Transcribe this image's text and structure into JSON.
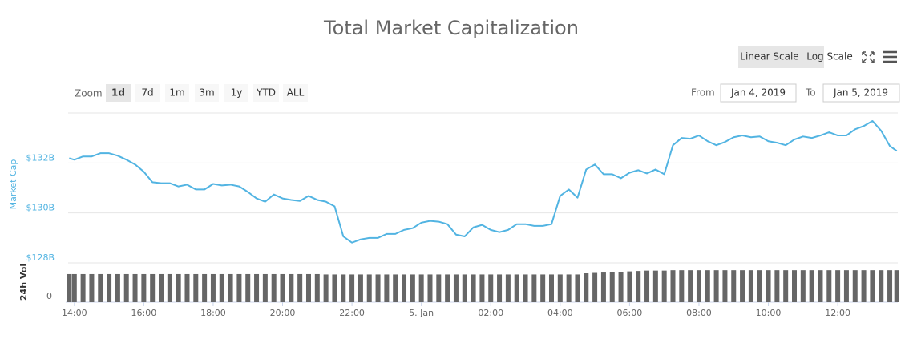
{
  "chart_data": {
    "type": "line",
    "title": "Total Market Capitalization",
    "ylabel": "Market Cap",
    "x": [
      13.85,
      14,
      14.25,
      14.5,
      14.75,
      15,
      15.25,
      15.5,
      15.75,
      16,
      16.25,
      16.5,
      16.75,
      17,
      17.25,
      17.5,
      17.75,
      18,
      18.25,
      18.5,
      18.75,
      19,
      19.25,
      19.5,
      19.75,
      20,
      20.25,
      20.5,
      20.75,
      21,
      21.25,
      21.5,
      21.75,
      22,
      22.25,
      22.5,
      22.75,
      23,
      23.25,
      23.5,
      23.75,
      24,
      24.25,
      24.5,
      24.75,
      25,
      25.25,
      25.5,
      25.75,
      26,
      26.25,
      26.5,
      26.75,
      27,
      27.25,
      27.5,
      27.75,
      28,
      28.25,
      28.5,
      28.75,
      29,
      29.25,
      29.5,
      29.75,
      30,
      30.25,
      30.5,
      30.75,
      31,
      31.25,
      31.5,
      31.75,
      32,
      32.25,
      32.5,
      32.75,
      33,
      33.25,
      33.5,
      33.75,
      34,
      34.25,
      34.5,
      34.75,
      35,
      35.25,
      35.5,
      35.75,
      36,
      36.25,
      36.5,
      36.75,
      37,
      37.25,
      37.5,
      37.7
    ],
    "series": [
      {
        "name": "Market Cap",
        "color": "#52b4e2",
        "values": [
          132.19,
          132.13,
          132.26,
          132.26,
          132.39,
          132.39,
          132.29,
          132.13,
          131.94,
          131.65,
          131.23,
          131.19,
          131.19,
          131.06,
          131.13,
          130.94,
          130.94,
          131.16,
          131.1,
          131.13,
          131.06,
          130.84,
          130.58,
          130.45,
          130.74,
          130.58,
          130.52,
          130.48,
          130.68,
          130.52,
          130.45,
          130.26,
          129.06,
          128.81,
          128.94,
          129.0,
          129.0,
          129.16,
          129.16,
          129.32,
          129.39,
          129.61,
          129.68,
          129.65,
          129.55,
          129.13,
          129.06,
          129.42,
          129.52,
          129.32,
          129.23,
          129.32,
          129.55,
          129.55,
          129.48,
          129.48,
          129.55,
          130.68,
          130.94,
          130.61,
          131.74,
          131.94,
          131.55,
          131.55,
          131.39,
          131.61,
          131.71,
          131.58,
          131.74,
          131.55,
          132.71,
          133.0,
          132.97,
          133.1,
          132.87,
          132.71,
          132.84,
          133.03,
          133.1,
          133.03,
          133.06,
          132.87,
          132.81,
          132.71,
          132.94,
          133.06,
          133.0,
          133.1,
          133.23,
          133.1,
          133.1,
          133.35,
          133.48,
          133.68,
          133.29,
          132.68,
          132.48
        ]
      }
    ],
    "xlim": [
      13.82,
      37.73
    ],
    "xticks": [
      {
        "value": 14,
        "label": "14:00"
      },
      {
        "value": 16,
        "label": "16:00"
      },
      {
        "value": 18,
        "label": "18:00"
      },
      {
        "value": 20,
        "label": "20:00"
      },
      {
        "value": 22,
        "label": "22:00"
      },
      {
        "value": 24,
        "label": "5. Jan"
      },
      {
        "value": 26,
        "label": "02:00"
      },
      {
        "value": 28,
        "label": "04:00"
      },
      {
        "value": 30,
        "label": "06:00"
      },
      {
        "value": 32,
        "label": "08:00"
      },
      {
        "value": 34,
        "label": "10:00"
      },
      {
        "value": 36,
        "label": "12:00"
      }
    ],
    "ylim": [
      128,
      134
    ],
    "yticks": [
      {
        "value": 128,
        "label": "$128B"
      },
      {
        "value": 130,
        "label": "$130B"
      },
      {
        "value": 132,
        "label": "$132B"
      }
    ],
    "grid": true,
    "volume": {
      "ylabel": "24h Vol",
      "color": "#666666",
      "ylim": [
        0,
        100
      ],
      "yticks": [
        0
      ],
      "values": [
        73,
        73,
        73,
        73,
        73,
        73,
        73,
        73,
        73,
        73,
        73,
        73,
        73,
        73,
        73,
        73,
        73,
        73,
        73,
        73,
        73,
        73,
        73,
        73,
        73,
        73,
        73,
        73,
        73,
        73,
        72,
        72,
        72,
        72,
        72,
        72,
        72,
        72,
        72,
        72,
        72,
        72,
        72,
        72,
        72,
        72,
        72,
        72,
        72,
        72,
        72,
        72,
        72,
        72,
        72,
        72,
        72,
        72,
        72,
        72,
        75,
        76,
        77,
        78,
        79,
        80,
        81,
        82,
        82,
        82,
        83,
        83,
        83,
        83,
        83,
        83,
        83,
        83,
        83,
        83,
        83,
        83,
        83,
        83,
        83,
        83,
        83,
        83,
        83,
        83,
        83,
        83,
        83,
        83,
        83,
        83,
        83
      ]
    }
  },
  "ui": {
    "scale_buttons": [
      "Linear Scale",
      "Log Scale"
    ],
    "zoom_label": "Zoom",
    "zoom_buttons": [
      "1d",
      "7d",
      "1m",
      "3m",
      "1y",
      "YTD",
      "ALL"
    ],
    "from_label": "From",
    "from_value": "Jan 4, 2019",
    "to_label": "To",
    "to_value": "Jan 5, 2019"
  }
}
